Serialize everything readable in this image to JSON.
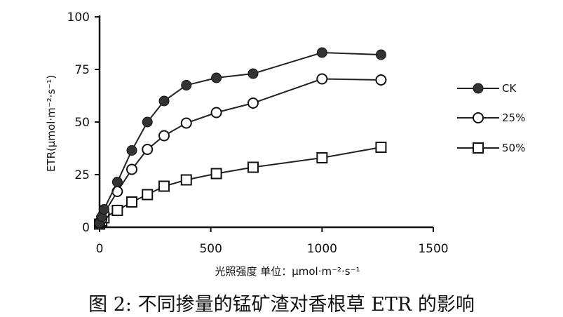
{
  "figure_caption": "图 2: 不同掺量的锰矿渣对香根草 ETR 的影响",
  "chart_data": {
    "type": "line",
    "title": "",
    "xlabel": "光照强度 单位：μmol·m⁻²·s⁻¹",
    "ylabel": "ETR(μmol·m⁻²·s⁻¹)",
    "xlim": [
      0,
      1500
    ],
    "ylim": [
      0,
      100
    ],
    "x_ticks": [
      0,
      500,
      1000,
      1500
    ],
    "y_ticks": [
      0,
      25,
      50,
      75,
      100
    ],
    "grid": false,
    "legend_position": "right",
    "x": [
      0,
      10,
      20,
      80,
      145,
      215,
      290,
      390,
      525,
      690,
      1000,
      1265
    ],
    "series": [
      {
        "name": "CK",
        "marker": "filled-circle",
        "color": "#333333",
        "values": [
          2,
          5,
          8.5,
          21.5,
          36.5,
          50,
          60,
          67.5,
          71,
          73,
          83,
          82
        ]
      },
      {
        "name": "25%",
        "marker": "open-circle",
        "color": "#111111",
        "values": [
          1.5,
          4,
          6.5,
          17,
          27.5,
          37,
          43.5,
          49.5,
          54.5,
          59,
          70.5,
          70
        ]
      },
      {
        "name": "50%",
        "marker": "open-square",
        "color": "#111111",
        "values": [
          1.5,
          3,
          4.5,
          8,
          12,
          15.5,
          19.5,
          22.5,
          25.5,
          28.5,
          33,
          38
        ]
      }
    ]
  }
}
